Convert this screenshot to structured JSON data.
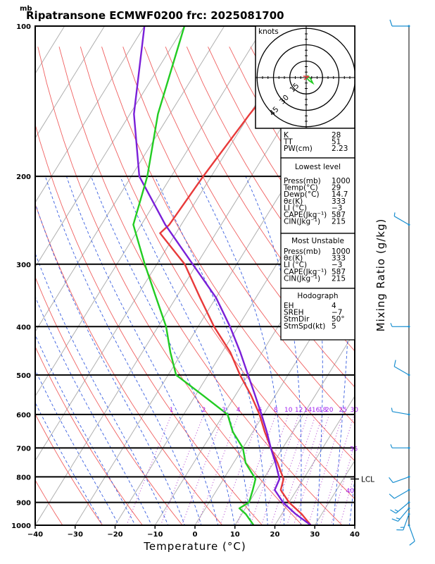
{
  "title": "Ripatransone ECMWF0200 frc: 2025081700",
  "pressure_unit": "mb",
  "chart_data": {
    "type": "line",
    "subtype": "skew-T log-p",
    "xlabel": "Temperature (°C)",
    "ylabel_right": "Mixing Ratio (g/kg)",
    "xlim": [
      -40,
      40
    ],
    "ylim": [
      1000,
      100
    ],
    "x_ticks": [
      "−40",
      "−30",
      "−20",
      "−10",
      "0",
      "10",
      "20",
      "30",
      "40"
    ],
    "x_tick_values": [
      -40,
      -30,
      -20,
      -10,
      0,
      10,
      20,
      30,
      40
    ],
    "y_ticks": [
      "1000",
      "900",
      "800",
      "700",
      "600",
      "500",
      "400",
      "300",
      "200",
      "100"
    ],
    "y_tick_values": [
      1000,
      900,
      800,
      700,
      600,
      500,
      400,
      300,
      200,
      100
    ],
    "grid": true,
    "lcl_label": "LCL",
    "lcl_pressure": 808,
    "mixing_ratio_labels": [
      "1",
      "2",
      "3",
      "4",
      "6",
      "8",
      "10",
      "12",
      "14",
      "16",
      "18",
      "20",
      "25",
      "30",
      "35",
      "40"
    ],
    "series": [
      {
        "name": "Temperature",
        "color": "#e83a3a",
        "p": [
          1000,
          950,
          900,
          850,
          808,
          750,
          700,
          650,
          600,
          550,
          500,
          450,
          400,
          350,
          300,
          260,
          250,
          200,
          150,
          100
        ],
        "t": [
          29,
          25,
          20,
          16,
          15,
          11,
          7,
          3,
          -1,
          -6,
          -12,
          -18,
          -26,
          -34,
          -43,
          -54,
          -53,
          -52,
          -50,
          -46
        ]
      },
      {
        "name": "Parcel",
        "color": "#7a1fd8",
        "p": [
          1000,
          950,
          900,
          850,
          808,
          750,
          700,
          650,
          600,
          550,
          500,
          450,
          400,
          350,
          300,
          250,
          200,
          150,
          100
        ],
        "t": [
          29,
          23.5,
          18.5,
          14.5,
          14,
          10.5,
          7,
          3.5,
          -0.5,
          -5,
          -10,
          -15.5,
          -22,
          -30,
          -41,
          -54,
          -68,
          -79,
          -90
        ]
      },
      {
        "name": "Dewpoint",
        "color": "#22cc22",
        "p": [
          1000,
          950,
          925,
          900,
          850,
          808,
          750,
          700,
          650,
          600,
          550,
          500,
          450,
          400,
          350,
          300,
          250,
          200,
          150,
          100
        ],
        "t": [
          14.7,
          11,
          8.5,
          10,
          9,
          8,
          3,
          0,
          -5,
          -9,
          -18,
          -28,
          -33,
          -38,
          -45,
          -53,
          -62,
          -66,
          -73,
          -80
        ]
      }
    ]
  },
  "hodograph": {
    "unit_label": "knots",
    "rings": [
      "15",
      "30",
      "45"
    ],
    "ring_values": [
      15,
      30,
      45
    ],
    "points": [
      [
        0,
        0
      ],
      [
        3,
        -3
      ],
      [
        6,
        -5
      ],
      [
        4,
        -1
      ],
      [
        1,
        2
      ]
    ],
    "storm_motion": [
      2,
      1
    ]
  },
  "indices": {
    "top": [
      {
        "k": "K",
        "v": "28"
      },
      {
        "k": "TT",
        "v": "51"
      },
      {
        "k": "PW(cm)",
        "v": "2.23"
      }
    ],
    "lowest_header": "Lowest level",
    "lowest": [
      {
        "k": "Press(mb)",
        "v": "1000"
      },
      {
        "k": "Temp(°C)",
        "v": "29"
      },
      {
        "k": "Dewp(°C)",
        "v": "14.7"
      },
      {
        "k": "θε(K)",
        "v": "333"
      },
      {
        "k": "LI (°C)",
        "v": "−3"
      },
      {
        "k": "CAPE(Jkg⁻¹)",
        "v": "587"
      },
      {
        "k": "CIN(Jkg⁻¹)",
        "v": "215"
      }
    ],
    "unstable_header": "Most Unstable",
    "unstable": [
      {
        "k": "Press(mb)",
        "v": "1000"
      },
      {
        "k": "θε(K)",
        "v": "333"
      },
      {
        "k": "LI (°C)",
        "v": "−3"
      },
      {
        "k": "CAPE(Jkg⁻¹)",
        "v": "587"
      },
      {
        "k": "CIN(Jkg⁻¹)",
        "v": "215"
      }
    ],
    "hodo_header": "Hodograph",
    "hodo": [
      {
        "k": "EH",
        "v": "4"
      },
      {
        "k": "SREH",
        "v": "−7"
      },
      {
        "k": "StmDir",
        "v": "50°"
      },
      {
        "k": "StmSpd(kt)",
        "v": "5"
      }
    ]
  },
  "wind_barbs": [
    {
      "p": 1000,
      "dir": 160,
      "spd": 10
    },
    {
      "p": 950,
      "dir": 200,
      "spd": 15
    },
    {
      "p": 925,
      "dir": 220,
      "spd": 15
    },
    {
      "p": 900,
      "dir": 230,
      "spd": 15
    },
    {
      "p": 850,
      "dir": 240,
      "spd": 10
    },
    {
      "p": 800,
      "dir": 250,
      "spd": 10
    },
    {
      "p": 700,
      "dir": 270,
      "spd": 5
    },
    {
      "p": 600,
      "dir": 280,
      "spd": 5
    },
    {
      "p": 500,
      "dir": 300,
      "spd": 10
    },
    {
      "p": 400,
      "dir": 270,
      "spd": 5
    },
    {
      "p": 250,
      "dir": 300,
      "spd": 5
    },
    {
      "p": 100,
      "dir": 270,
      "spd": 10
    }
  ]
}
